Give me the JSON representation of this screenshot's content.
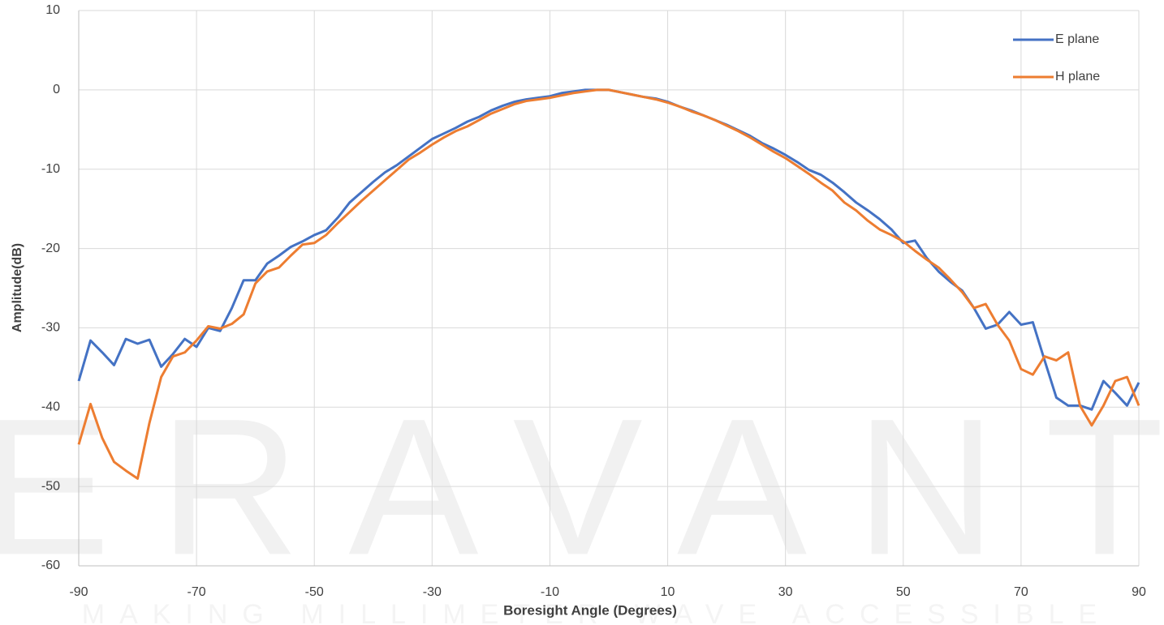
{
  "chart_data": {
    "type": "line",
    "watermark": "ERAVANT",
    "watermark_tagline": "MAKING MILLIMETER WAVE ACCESSIBLE",
    "x_label": "Boresight Angle (Degrees)",
    "y_label": "Amplitude(dB)",
    "x": [
      -90,
      -88,
      -86,
      -84,
      -82,
      -80,
      -78,
      -76,
      -74,
      -72,
      -70,
      -68,
      -66,
      -64,
      -62,
      -60,
      -58,
      -56,
      -54,
      -52,
      -50,
      -48,
      -46,
      -44,
      -42,
      -40,
      -38,
      -36,
      -34,
      -32,
      -30,
      -28,
      -26,
      -24,
      -22,
      -20,
      -18,
      -16,
      -14,
      -12,
      -10,
      -8,
      -6,
      -4,
      -2,
      0,
      2,
      4,
      6,
      8,
      10,
      12,
      14,
      16,
      18,
      20,
      22,
      24,
      26,
      28,
      30,
      32,
      34,
      36,
      38,
      40,
      42,
      44,
      46,
      48,
      50,
      52,
      54,
      56,
      58,
      60,
      62,
      64,
      66,
      68,
      70,
      72,
      74,
      76,
      78,
      80,
      82,
      84,
      86,
      88,
      90
    ],
    "series": [
      {
        "name": "E plane",
        "color": "#4472c4",
        "values": [
          -36.7,
          -31.6,
          -33.1,
          -34.7,
          -31.4,
          -32,
          -31.5,
          -34.9,
          -33.3,
          -31.4,
          -32.4,
          -30,
          -30.4,
          -27.5,
          -24,
          -24,
          -21.9,
          -20.9,
          -19.8,
          -19.1,
          -18.3,
          -17.7,
          -16.1,
          -14.2,
          -12.9,
          -11.6,
          -10.4,
          -9.5,
          -8.4,
          -7.3,
          -6.2,
          -5.5,
          -4.8,
          -4,
          -3.4,
          -2.6,
          -2,
          -1.5,
          -1.2,
          -1,
          -0.8,
          -0.4,
          -0.2,
          0,
          0,
          0,
          -0.3,
          -0.6,
          -0.9,
          -1.1,
          -1.5,
          -2.1,
          -2.6,
          -3.2,
          -3.8,
          -4.4,
          -5.1,
          -5.8,
          -6.7,
          -7.4,
          -8.2,
          -9.1,
          -10.1,
          -10.7,
          -11.7,
          -12.9,
          -14.2,
          -15.2,
          -16.3,
          -17.6,
          -19.3,
          -19,
          -21.2,
          -22.9,
          -24.2,
          -25.3,
          -27.5,
          -30.1,
          -29.6,
          -28,
          -29.6,
          -29.3,
          -34.1,
          -38.8,
          -39.8,
          -39.8,
          -40.3,
          -36.7,
          -38.2,
          -39.8,
          -36.9
        ]
      },
      {
        "name": "H plane",
        "color": "#ed7d31",
        "values": [
          -44.7,
          -39.6,
          -43.9,
          -46.9,
          -48,
          -49,
          -42,
          -36.2,
          -33.6,
          -33.1,
          -31.6,
          -29.8,
          -30.1,
          -29.5,
          -28.3,
          -24.4,
          -22.9,
          -22.4,
          -20.9,
          -19.5,
          -19.3,
          -18.3,
          -16.8,
          -15.4,
          -14,
          -12.7,
          -11.4,
          -10.1,
          -8.8,
          -7.9,
          -6.9,
          -6,
          -5.2,
          -4.6,
          -3.8,
          -3,
          -2.4,
          -1.8,
          -1.4,
          -1.2,
          -1,
          -0.7,
          -0.4,
          -0.2,
          0,
          0,
          -0.3,
          -0.6,
          -0.9,
          -1.2,
          -1.6,
          -2.1,
          -2.7,
          -3.2,
          -3.8,
          -4.5,
          -5.2,
          -6,
          -6.9,
          -7.8,
          -8.6,
          -9.6,
          -10.6,
          -11.7,
          -12.7,
          -14.2,
          -15.2,
          -16.5,
          -17.6,
          -18.3,
          -19.1,
          -20.3,
          -21.4,
          -22.4,
          -23.9,
          -25.5,
          -27.5,
          -27,
          -29.6,
          -31.6,
          -35.2,
          -35.9,
          -33.6,
          -34.1,
          -33.1,
          -39.8,
          -42.3,
          -39.8,
          -36.7,
          -36.2,
          -39.8
        ]
      }
    ],
    "xlim": [
      -90,
      90
    ],
    "xticks": [
      -90,
      -70,
      -50,
      -30,
      -10,
      10,
      30,
      50,
      70,
      90
    ],
    "ylim": [
      -60,
      10
    ],
    "yticks": [
      -60,
      -50,
      -40,
      -30,
      -20,
      -10,
      0,
      10
    ],
    "grid": true,
    "legend": "top-right"
  }
}
